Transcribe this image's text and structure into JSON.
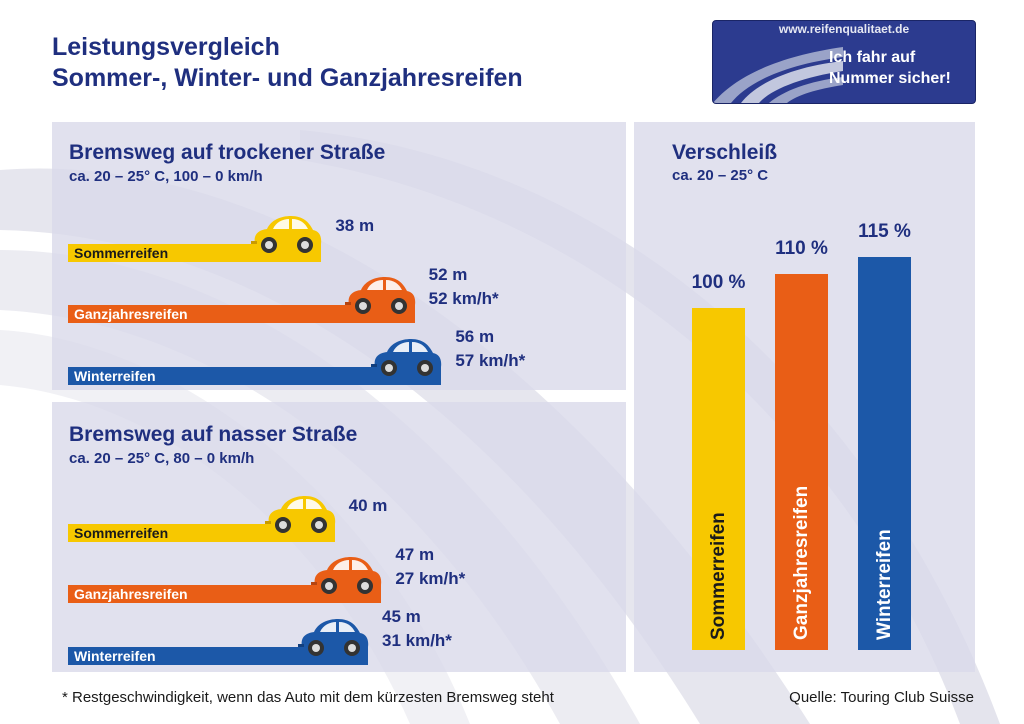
{
  "title": {
    "line1": "Leistungsvergleich",
    "line2": "Sommer-, Winter- und Ganzjahresreifen"
  },
  "logo": {
    "url": "www.reifenqualitaet.de",
    "slogan_line1": "Ich fahr auf",
    "slogan_line2": "Nummer sicher!"
  },
  "colors": {
    "title": "#1f2f7f",
    "summer": "#f7c800",
    "allseason": "#e95e16",
    "winter": "#1c58a8",
    "panel": "#dadaea"
  },
  "chart_data": [
    {
      "type": "bar",
      "orientation": "horizontal",
      "title": "Bremsweg auf trockener Straße",
      "subtitle": "ca. 20 – 25° C, 100 – 0 km/h",
      "categories": [
        "Sommerreifen",
        "Ganzjahresreifen",
        "Winterreifen"
      ],
      "values": [
        38,
        52,
        56
      ],
      "unit": "m",
      "value_labels": [
        "38 m",
        "52 m",
        "56 m"
      ],
      "residual_speed_labels": [
        "",
        "52 km/h*",
        "57 km/h*"
      ],
      "colors": [
        "#f7c800",
        "#e95e16",
        "#1c58a8"
      ]
    },
    {
      "type": "bar",
      "orientation": "horizontal",
      "title": "Bremsweg auf nasser Straße",
      "subtitle": "ca. 20 – 25° C, 80 – 0 km/h",
      "categories": [
        "Sommerreifen",
        "Ganzjahresreifen",
        "Winterreifen"
      ],
      "values": [
        40,
        47,
        45
      ],
      "unit": "m",
      "value_labels": [
        "40 m",
        "47 m",
        "45 m"
      ],
      "residual_speed_labels": [
        "",
        "27 km/h*",
        "31 km/h*"
      ],
      "colors": [
        "#f7c800",
        "#e95e16",
        "#1c58a8"
      ]
    },
    {
      "type": "bar",
      "orientation": "vertical",
      "title": "Verschleiß",
      "subtitle": "ca. 20 – 25° C",
      "categories": [
        "Sommerreifen",
        "Ganzjahresreifen",
        "Winterreifen"
      ],
      "values": [
        100,
        110,
        115
      ],
      "unit": "%",
      "value_labels": [
        "100 %",
        "110 %",
        "115 %"
      ],
      "colors": [
        "#f7c800",
        "#e95e16",
        "#1c58a8"
      ]
    }
  ],
  "footnote": "* Restgeschwindigkeit, wenn das Auto mit dem kürzesten Bremsweg steht",
  "source": "Quelle: Touring Club Suisse"
}
